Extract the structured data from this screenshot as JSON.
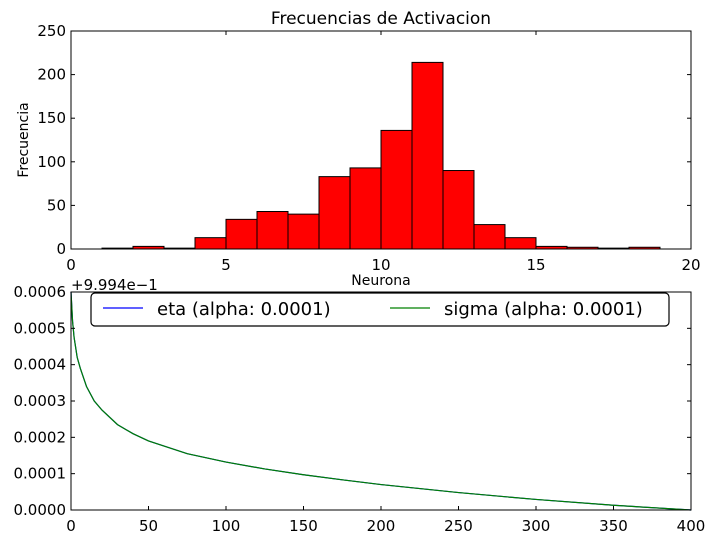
{
  "chart_data": [
    {
      "type": "bar",
      "title": "Frecuencias de Activacion",
      "xlabel": "Neurona",
      "ylabel": "Frecuencia",
      "xlim": [
        0,
        20
      ],
      "ylim": [
        0,
        250
      ],
      "xticks": [
        "0",
        "5",
        "10",
        "15",
        "20"
      ],
      "yticks": [
        "0",
        "50",
        "100",
        "150",
        "200",
        "250"
      ],
      "bar_color": "#ff0000",
      "edge_color": "#000000",
      "bins": [
        {
          "start": 1,
          "end": 2,
          "value": 1
        },
        {
          "start": 2,
          "end": 3,
          "value": 3
        },
        {
          "start": 3,
          "end": 4,
          "value": 1
        },
        {
          "start": 4,
          "end": 5,
          "value": 13
        },
        {
          "start": 5,
          "end": 6,
          "value": 34
        },
        {
          "start": 6,
          "end": 7,
          "value": 43
        },
        {
          "start": 7,
          "end": 8,
          "value": 40
        },
        {
          "start": 8,
          "end": 9,
          "value": 83
        },
        {
          "start": 9,
          "end": 10,
          "value": 93
        },
        {
          "start": 10,
          "end": 11,
          "value": 136
        },
        {
          "start": 11,
          "end": 12,
          "value": 214
        },
        {
          "start": 12,
          "end": 13,
          "value": 90
        },
        {
          "start": 13,
          "end": 14,
          "value": 28
        },
        {
          "start": 14,
          "end": 15,
          "value": 13
        },
        {
          "start": 15,
          "end": 16,
          "value": 3
        },
        {
          "start": 16,
          "end": 17,
          "value": 2
        },
        {
          "start": 17,
          "end": 18,
          "value": 1
        },
        {
          "start": 18,
          "end": 19,
          "value": 2
        }
      ]
    },
    {
      "type": "line",
      "xlim": [
        0,
        400
      ],
      "ylim": [
        0,
        0.0006
      ],
      "offset_label": "+9.994e−1",
      "xticks": [
        "0",
        "50",
        "100",
        "150",
        "200",
        "250",
        "300",
        "350",
        "400"
      ],
      "yticks": [
        "0.0000",
        "0.0001",
        "0.0002",
        "0.0003",
        "0.0004",
        "0.0005",
        "0.0006"
      ],
      "legend_position": "upper center",
      "series": [
        {
          "name": "eta (alpha: 0.0001)",
          "color": "#0000ff",
          "x": [
            0,
            1,
            2,
            4,
            6,
            10,
            15,
            20,
            30,
            40,
            50,
            75,
            100,
            125,
            150,
            175,
            200,
            250,
            300,
            350,
            400
          ],
          "y": [
            0.0006,
            0.00052,
            0.000475,
            0.00042,
            0.00039,
            0.00034,
            0.0003,
            0.000275,
            0.000235,
            0.00021,
            0.00019,
            0.000155,
            0.000132,
            0.000113,
            9.7e-05,
            8.3e-05,
            7e-05,
            4.8e-05,
            2.9e-05,
            1.3e-05,
            0.0
          ]
        },
        {
          "name": "sigma (alpha: 0.0001)",
          "color": "#008000",
          "x": [
            0,
            1,
            2,
            4,
            6,
            10,
            15,
            20,
            30,
            40,
            50,
            75,
            100,
            125,
            150,
            175,
            200,
            250,
            300,
            350,
            400
          ],
          "y": [
            0.0006,
            0.00052,
            0.000475,
            0.00042,
            0.00039,
            0.00034,
            0.0003,
            0.000275,
            0.000235,
            0.00021,
            0.00019,
            0.000155,
            0.000132,
            0.000113,
            9.7e-05,
            8.3e-05,
            7e-05,
            4.8e-05,
            2.9e-05,
            1.3e-05,
            0.0
          ]
        }
      ]
    }
  ]
}
